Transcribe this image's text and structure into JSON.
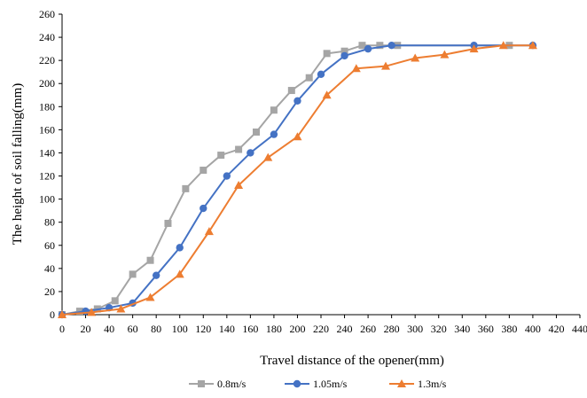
{
  "chart_data": {
    "type": "line",
    "title": "",
    "xlabel": "Travel distance of the opener(mm)",
    "ylabel": "The height of soil falling(mm)",
    "xlim": [
      0,
      440
    ],
    "ylim": [
      0,
      260
    ],
    "xticks": [
      0,
      20,
      40,
      60,
      80,
      100,
      120,
      140,
      160,
      180,
      200,
      220,
      240,
      260,
      280,
      300,
      320,
      340,
      360,
      380,
      400,
      420,
      440
    ],
    "yticks": [
      0,
      20,
      40,
      60,
      80,
      100,
      120,
      140,
      160,
      180,
      200,
      220,
      240,
      260
    ],
    "grid": false,
    "legend_position": "bottom",
    "series": [
      {
        "name": "0.8m/s",
        "color": "#A5A5A5",
        "marker": "square",
        "x": [
          0,
          15,
          30,
          45,
          60,
          75,
          90,
          105,
          120,
          135,
          150,
          165,
          180,
          195,
          210,
          225,
          240,
          255,
          270,
          285,
          380
        ],
        "y": [
          0,
          3,
          5,
          12,
          35,
          47,
          79,
          109,
          125,
          138,
          143,
          158,
          177,
          194,
          205,
          226,
          228,
          233,
          233,
          233,
          233
        ]
      },
      {
        "name": "1.05m/s",
        "color": "#4472C4",
        "marker": "circle",
        "x": [
          0,
          20,
          40,
          60,
          80,
          100,
          120,
          140,
          160,
          180,
          200,
          220,
          240,
          260,
          280,
          350,
          400
        ],
        "y": [
          0,
          3,
          6,
          10,
          34,
          58,
          92,
          120,
          140,
          156,
          185,
          208,
          224,
          230,
          233,
          233,
          233
        ]
      },
      {
        "name": "1.3m/s",
        "color": "#ED7D31",
        "marker": "triangle",
        "x": [
          0,
          25,
          50,
          75,
          100,
          125,
          150,
          175,
          200,
          225,
          250,
          275,
          300,
          325,
          350,
          375,
          400
        ],
        "y": [
          0,
          2,
          5,
          15,
          35,
          72,
          112,
          136,
          154,
          190,
          213,
          215,
          222,
          225,
          230,
          233,
          233
        ]
      }
    ]
  }
}
